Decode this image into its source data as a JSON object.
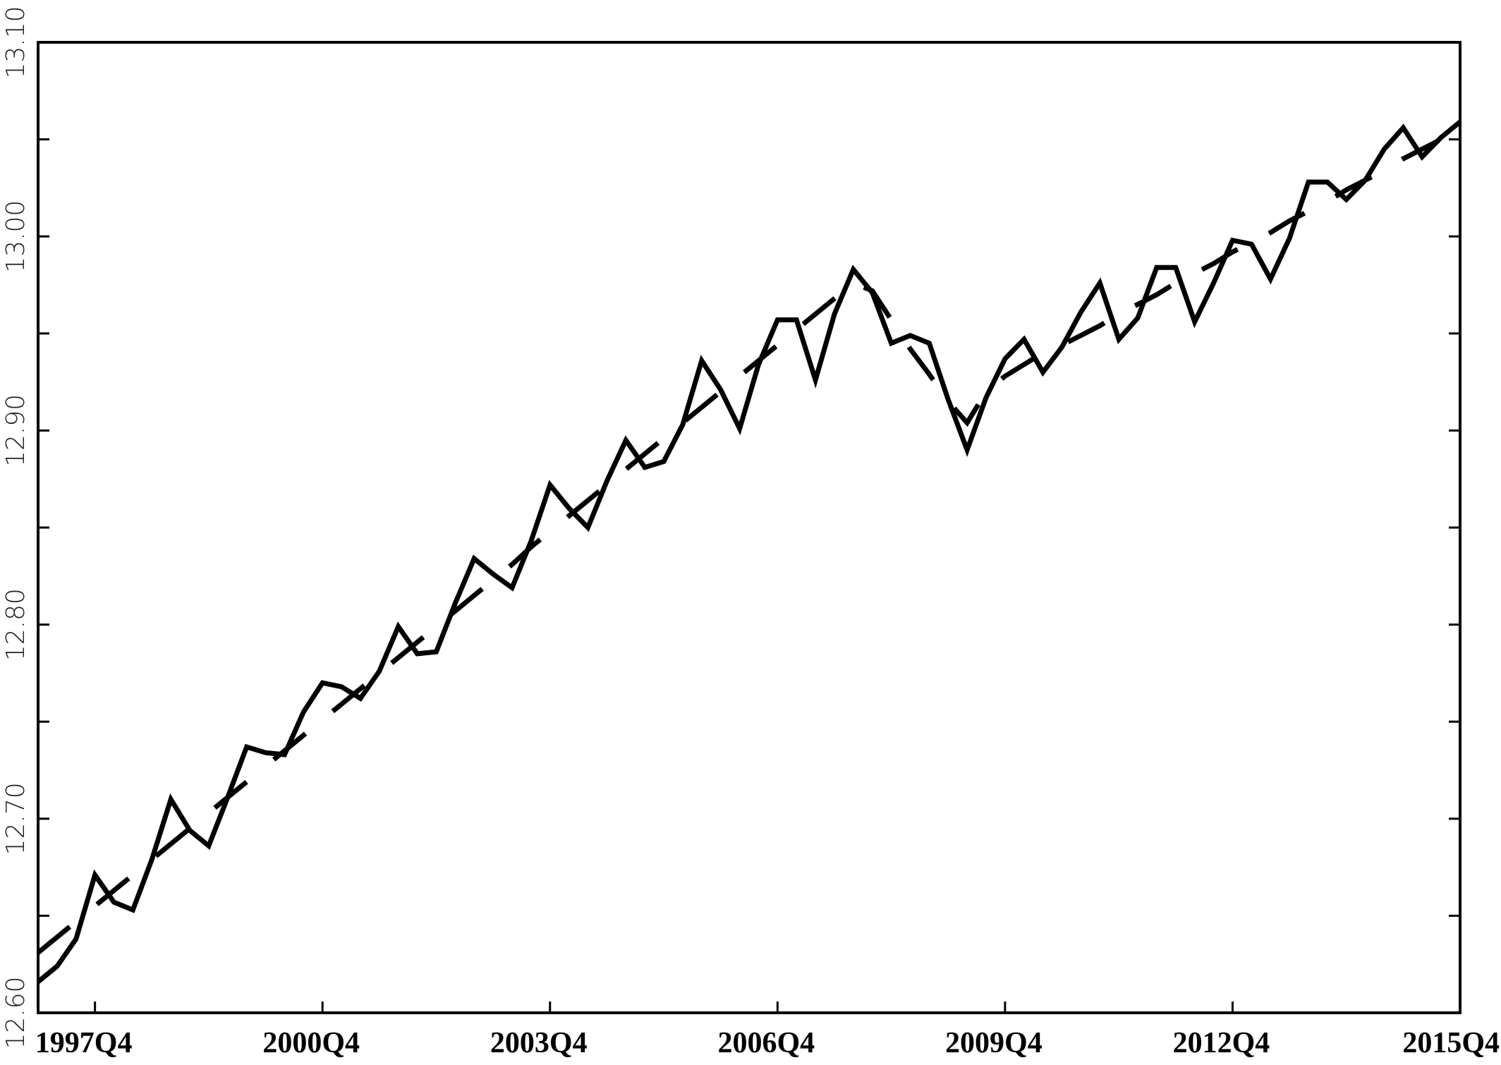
{
  "chart_data": {
    "type": "line",
    "categories": [
      null,
      null,
      null,
      "1997Q4",
      null,
      null,
      null,
      null,
      null,
      null,
      null,
      null,
      null,
      null,
      null,
      "2000Q4",
      null,
      null,
      null,
      null,
      null,
      null,
      null,
      null,
      null,
      null,
      null,
      "2003Q4",
      null,
      null,
      null,
      null,
      null,
      null,
      null,
      null,
      null,
      null,
      null,
      "2006Q4",
      null,
      null,
      null,
      null,
      null,
      null,
      null,
      null,
      null,
      null,
      null,
      "2009Q4",
      null,
      null,
      null,
      null,
      null,
      null,
      null,
      null,
      null,
      null,
      null,
      "2012Q4",
      null,
      null,
      null,
      null,
      null,
      null,
      null,
      null,
      null,
      null,
      null,
      "2015Q4"
    ],
    "series": [
      {
        "color": "#000000",
        "line_style": "solid",
        "values": [
          12.616,
          12.624,
          12.638,
          12.671,
          12.657,
          12.653,
          12.679,
          12.71,
          12.694,
          12.686,
          12.711,
          12.737,
          12.734,
          12.733,
          12.755,
          12.77,
          12.768,
          12.762,
          12.776,
          12.799,
          12.785,
          12.786,
          12.811,
          12.834,
          12.826,
          12.819,
          12.843,
          12.872,
          12.86,
          12.85,
          12.874,
          12.895,
          12.881,
          12.884,
          12.903,
          12.936,
          12.921,
          12.901,
          12.934,
          12.957,
          12.957,
          12.926,
          12.96,
          12.983,
          12.971,
          12.945,
          12.949,
          12.945,
          12.916,
          12.89,
          12.917,
          12.937,
          12.947,
          12.93,
          12.943,
          12.961,
          12.976,
          12.947,
          12.958,
          12.984,
          12.984,
          12.956,
          12.976,
          12.998,
          12.996,
          12.978,
          12.999,
          13.028,
          13.028,
          13.019,
          13.029,
          13.045,
          13.056,
          13.041,
          13.051,
          13.059
        ]
      },
      {
        "color": "#000000",
        "line_style": "dashed",
        "values": [
          12.631,
          12.639,
          12.647,
          12.655,
          12.663,
          12.671,
          12.679,
          12.687,
          12.695,
          12.703,
          12.711,
          12.719,
          12.727,
          12.735,
          12.743,
          12.751,
          12.759,
          12.767,
          12.775,
          12.783,
          12.791,
          12.799,
          12.807,
          12.815,
          12.823,
          12.831,
          12.84,
          12.848,
          12.856,
          12.864,
          12.872,
          12.88,
          12.888,
          12.896,
          12.904,
          12.912,
          12.92,
          12.928,
          12.936,
          12.944,
          12.952,
          12.96,
          12.968,
          12.976,
          12.972,
          12.957,
          12.942,
          12.929,
          12.915,
          12.904,
          12.92,
          12.928,
          12.934,
          12.94,
          12.944,
          12.949,
          12.954,
          12.96,
          12.965,
          12.97,
          12.976,
          12.981,
          12.986,
          12.992,
          12.997,
          13.002,
          13.008,
          13.013,
          13.018,
          13.024,
          13.029,
          13.034,
          13.04,
          13.045,
          13.05,
          13.056
        ]
      }
    ],
    "ylim": [
      12.6,
      13.1
    ],
    "yticks": [
      {
        "value": 12.6,
        "label": "12.60"
      },
      {
        "value": 12.7,
        "label": "12.70"
      },
      {
        "value": 12.8,
        "label": "12.80"
      },
      {
        "value": 12.9,
        "label": "12.90"
      },
      {
        "value": 13.0,
        "label": "13.00"
      },
      {
        "value": 13.1,
        "label": "13.10"
      }
    ],
    "yminor_ticks": [
      12.65,
      12.75,
      12.85,
      12.95,
      13.05
    ],
    "grid": false
  }
}
